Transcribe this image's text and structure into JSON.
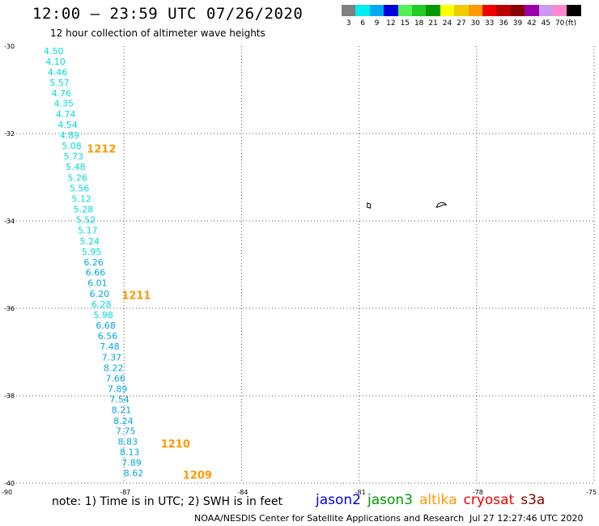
{
  "header": {
    "title": "12:00 – 23:59 UTC 07/26/2020",
    "subtitle": "12 hour collection of altimeter wave heights"
  },
  "colorbar": {
    "unit": "(ft)",
    "levels": [
      {
        "label": "3",
        "color": "#808080"
      },
      {
        "label": "6",
        "color": "#00eeee"
      },
      {
        "label": "9",
        "color": "#00aaee"
      },
      {
        "label": "12",
        "color": "#0000dd"
      },
      {
        "label": "15",
        "color": "#55ee55"
      },
      {
        "label": "18",
        "color": "#22cc22"
      },
      {
        "label": "21",
        "color": "#009900"
      },
      {
        "label": "24",
        "color": "#ffff00"
      },
      {
        "label": "27",
        "color": "#eecc00"
      },
      {
        "label": "30",
        "color": "#ff9900"
      },
      {
        "label": "33",
        "color": "#ee0000"
      },
      {
        "label": "36",
        "color": "#bb0000"
      },
      {
        "label": "39",
        "color": "#880000"
      },
      {
        "label": "42",
        "color": "#9900aa"
      },
      {
        "label": "45",
        "color": "#cc99ee"
      },
      {
        "label": "70",
        "color": "#ff88cc"
      },
      {
        "label": "",
        "color": "#000000"
      }
    ]
  },
  "map": {
    "lon_range": [
      -90,
      -75
    ],
    "lat_range": [
      -40,
      -30
    ],
    "lat_grid": [
      -32,
      -34,
      -36,
      -38,
      -40
    ],
    "lon_grid": [
      -87,
      -84,
      -81,
      -78,
      -75
    ],
    "lat_tick_labels": [
      {
        "lat": -30,
        "label": "-30"
      },
      {
        "lat": -32,
        "label": "-32"
      },
      {
        "lat": -34,
        "label": "-34"
      },
      {
        "lat": -36,
        "label": "-36"
      },
      {
        "lat": -38,
        "label": "-38"
      },
      {
        "lat": -40,
        "label": "-40"
      }
    ],
    "lon_tick_labels": [
      {
        "lon": -90,
        "label": "-90"
      },
      {
        "lon": -87,
        "label": "-87"
      },
      {
        "lon": -84,
        "label": "-84"
      },
      {
        "lon": -81,
        "label": "-81"
      },
      {
        "lon": -78,
        "label": "-78"
      },
      {
        "lon": -75,
        "label": "-75"
      }
    ],
    "wave_color_light": "#00dddd",
    "wave_color_dark": "#00aadd",
    "pass_time_color": "#ff9900",
    "coast_color": "#000000",
    "grid_color": "#555555",
    "wave_heights": [
      {
        "lon": -89.05,
        "lat": -30.11,
        "value": "4.50",
        "tone": "light"
      },
      {
        "lon": -89.0,
        "lat": -30.35,
        "value": "4.10",
        "tone": "light"
      },
      {
        "lon": -88.95,
        "lat": -30.59,
        "value": "4.46",
        "tone": "light"
      },
      {
        "lon": -88.9,
        "lat": -30.83,
        "value": "5.57",
        "tone": "light"
      },
      {
        "lon": -88.85,
        "lat": -31.07,
        "value": "4.76",
        "tone": "light"
      },
      {
        "lon": -88.79,
        "lat": -31.31,
        "value": "4.35",
        "tone": "light"
      },
      {
        "lon": -88.74,
        "lat": -31.56,
        "value": "4.74",
        "tone": "light"
      },
      {
        "lon": -88.69,
        "lat": -31.8,
        "value": "4.54",
        "tone": "light"
      },
      {
        "lon": -88.64,
        "lat": -32.04,
        "value": "4.89",
        "tone": "light"
      },
      {
        "lon": -88.59,
        "lat": -32.28,
        "value": "5.08",
        "tone": "light"
      },
      {
        "lon": -88.54,
        "lat": -32.52,
        "value": "5.73",
        "tone": "light"
      },
      {
        "lon": -88.49,
        "lat": -32.76,
        "value": "5.48",
        "tone": "light"
      },
      {
        "lon": -88.44,
        "lat": -33.01,
        "value": "5.26",
        "tone": "light"
      },
      {
        "lon": -88.39,
        "lat": -33.25,
        "value": "5.56",
        "tone": "light"
      },
      {
        "lon": -88.34,
        "lat": -33.49,
        "value": "5.12",
        "tone": "light"
      },
      {
        "lon": -88.29,
        "lat": -33.73,
        "value": "5.28",
        "tone": "light"
      },
      {
        "lon": -88.23,
        "lat": -33.97,
        "value": "5.52",
        "tone": "light"
      },
      {
        "lon": -88.18,
        "lat": -34.21,
        "value": "5.17",
        "tone": "light"
      },
      {
        "lon": -88.13,
        "lat": -34.46,
        "value": "5.24",
        "tone": "light"
      },
      {
        "lon": -88.08,
        "lat": -34.7,
        "value": "5.95",
        "tone": "light"
      },
      {
        "lon": -88.03,
        "lat": -34.94,
        "value": "6.26",
        "tone": "dark"
      },
      {
        "lon": -87.98,
        "lat": -35.18,
        "value": "6.66",
        "tone": "dark"
      },
      {
        "lon": -87.93,
        "lat": -35.42,
        "value": "6.01",
        "tone": "dark"
      },
      {
        "lon": -87.88,
        "lat": -35.67,
        "value": "6.20",
        "tone": "dark"
      },
      {
        "lon": -87.83,
        "lat": -35.91,
        "value": "6.28",
        "tone": "light"
      },
      {
        "lon": -87.78,
        "lat": -36.15,
        "value": "5.98",
        "tone": "light"
      },
      {
        "lon": -87.72,
        "lat": -36.39,
        "value": "6.68",
        "tone": "dark"
      },
      {
        "lon": -87.67,
        "lat": -36.63,
        "value": "6.56",
        "tone": "dark"
      },
      {
        "lon": -87.62,
        "lat": -36.87,
        "value": "7.48",
        "tone": "dark"
      },
      {
        "lon": -87.57,
        "lat": -37.12,
        "value": "7.37",
        "tone": "dark"
      },
      {
        "lon": -87.52,
        "lat": -37.36,
        "value": "8.22",
        "tone": "dark"
      },
      {
        "lon": -87.47,
        "lat": -37.6,
        "value": "7.66",
        "tone": "dark"
      },
      {
        "lon": -87.42,
        "lat": -37.84,
        "value": "7.89",
        "tone": "dark"
      },
      {
        "lon": -87.37,
        "lat": -38.08,
        "value": "7.54",
        "tone": "dark"
      },
      {
        "lon": -87.32,
        "lat": -38.32,
        "value": "8.21",
        "tone": "dark"
      },
      {
        "lon": -87.27,
        "lat": -38.57,
        "value": "8.24",
        "tone": "dark"
      },
      {
        "lon": -87.21,
        "lat": -38.81,
        "value": "7.75",
        "tone": "dark"
      },
      {
        "lon": -87.16,
        "lat": -39.05,
        "value": "8.83",
        "tone": "dark"
      },
      {
        "lon": -87.11,
        "lat": -39.29,
        "value": "8.13",
        "tone": "dark"
      },
      {
        "lon": -87.06,
        "lat": -39.53,
        "value": "7.89",
        "tone": "dark"
      },
      {
        "lon": -87.01,
        "lat": -39.77,
        "value": "8.62",
        "tone": "dark"
      }
    ],
    "pass_times": [
      {
        "lon": -87.95,
        "lat": -32.34,
        "label": "1212"
      },
      {
        "lon": -87.06,
        "lat": -35.69,
        "label": "1211"
      },
      {
        "lon": -86.06,
        "lat": -39.09,
        "label": "1210"
      },
      {
        "lon": -85.5,
        "lat": -39.81,
        "label": "1209"
      }
    ],
    "islands": [
      {
        "name": "small-island",
        "lon": -80.75,
        "lat": -33.65
      },
      {
        "name": "large-island",
        "lon": -78.9,
        "lat": -33.65
      }
    ]
  },
  "footer": {
    "note": "note: 1) Time is in UTC; 2) SWH is in feet",
    "satellites": [
      {
        "name": "jason2",
        "color": "#0000ee"
      },
      {
        "name": "jason3",
        "color": "#009900"
      },
      {
        "name": "altika",
        "color": "#ff9900"
      },
      {
        "name": "cryosat",
        "color": "#ee0000"
      },
      {
        "name": "s3a",
        "color": "#880000"
      }
    ],
    "credit": "NOAA/NESDIS Center for Satellite Applications and Research",
    "timestamp": "Jul 27 12:27:46 UTC 2020"
  }
}
